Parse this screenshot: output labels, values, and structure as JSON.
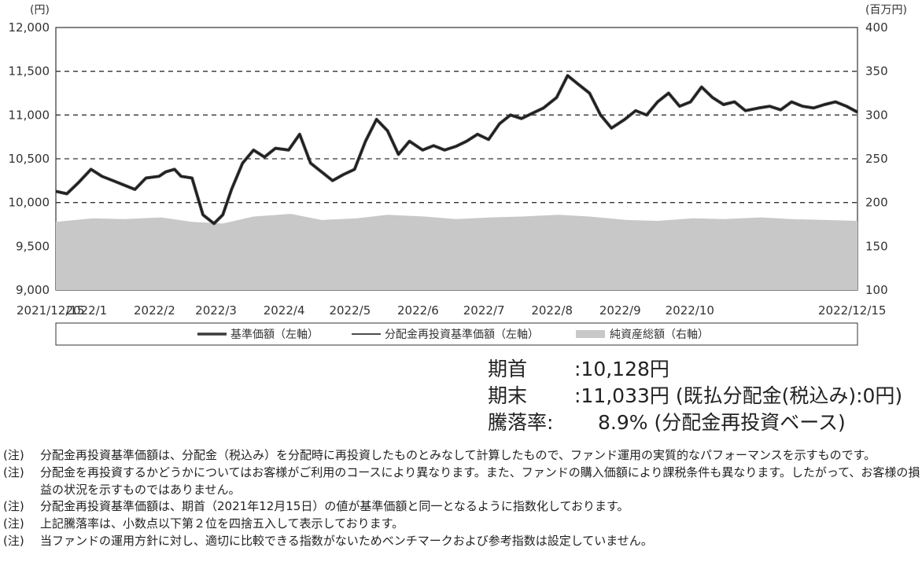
{
  "chart_data": {
    "type": "line",
    "left_axis_unit": "(円)",
    "right_axis_unit": "(百万円)",
    "ylim_left": [
      9000,
      12000
    ],
    "ylim_right": [
      100,
      400
    ],
    "yticks_left": [
      "9,000",
      "9,500",
      "10,000",
      "10,500",
      "11,000",
      "11,500",
      "12,000"
    ],
    "yticks_right": [
      "100",
      "150",
      "200",
      "250",
      "300",
      "350",
      "400"
    ],
    "xticks": [
      "2021/12/15",
      "2022/1",
      "2022/2",
      "2022/3",
      "2022/4",
      "2022/5",
      "2022/6",
      "2022/7",
      "2022/8",
      "2022/9",
      "2022/10",
      "2022/12/15"
    ],
    "grid": "dashed horizontal",
    "legend": {
      "placement": "bottom",
      "entries": [
        "基準価額（左軸）",
        "分配金再投資基準価額（左軸）",
        "純資産総額（右軸）"
      ]
    },
    "series": [
      {
        "name": "基準価額（左軸）",
        "axis": "left",
        "style": "thick line",
        "color": "#3a3a3a",
        "x": [
          "2021/12/15",
          "2021/12/20",
          "2021/12/25",
          "2021/12/31",
          "2022/1/5",
          "2022/1/10",
          "2022/1/15",
          "2022/1/20",
          "2022/1/25",
          "2022/1/31",
          "2022/2/3",
          "2022/2/7",
          "2022/2/10",
          "2022/2/15",
          "2022/2/20",
          "2022/2/25",
          "2022/3/1",
          "2022/3/5",
          "2022/3/10",
          "2022/3/15",
          "2022/3/20",
          "2022/3/25",
          "2022/3/31",
          "2022/4/5",
          "2022/4/10",
          "2022/4/15",
          "2022/4/20",
          "2022/4/25",
          "2022/4/30",
          "2022/5/5",
          "2022/5/10",
          "2022/5/15",
          "2022/5/20",
          "2022/5/25",
          "2022/5/31",
          "2022/6/5",
          "2022/6/10",
          "2022/6/15",
          "2022/6/20",
          "2022/6/25",
          "2022/6/30",
          "2022/7/5",
          "2022/7/10",
          "2022/7/15",
          "2022/7/20",
          "2022/7/25",
          "2022/7/31",
          "2022/8/5",
          "2022/8/10",
          "2022/8/15",
          "2022/8/20",
          "2022/8/25",
          "2022/8/31",
          "2022/9/5",
          "2022/9/10",
          "2022/9/15",
          "2022/9/20",
          "2022/9/25",
          "2022/9/30",
          "2022/10/5",
          "2022/10/10",
          "2022/10/15",
          "2022/10/20",
          "2022/10/25",
          "2022/10/31",
          "2022/11/5",
          "2022/11/10",
          "2022/11/15",
          "2022/11/20",
          "2022/11/25",
          "2022/11/30",
          "2022/12/5",
          "2022/12/10",
          "2022/12/15"
        ],
        "y": [
          10128,
          10100,
          10220,
          10380,
          10300,
          10250,
          10200,
          10150,
          10280,
          10300,
          10350,
          10380,
          10300,
          10280,
          9860,
          9760,
          9860,
          10150,
          10450,
          10600,
          10520,
          10620,
          10600,
          10780,
          10450,
          10350,
          10250,
          10320,
          10380,
          10700,
          10950,
          10820,
          10550,
          10700,
          10600,
          10650,
          10600,
          10640,
          10700,
          10780,
          10720,
          10900,
          11000,
          10960,
          11020,
          11080,
          11200,
          11450,
          11350,
          11250,
          11000,
          10850,
          10950,
          11050,
          11000,
          11150,
          11250,
          11100,
          11150,
          11320,
          11200,
          11120,
          11150,
          11050,
          11080,
          11100,
          11060,
          11150,
          11100,
          11080,
          11120,
          11150,
          11100,
          11033
        ]
      },
      {
        "name": "分配金再投資基準価額（左軸）",
        "axis": "left",
        "style": "thin line",
        "color": "#111111"
      },
      {
        "name": "純資産総額（右軸）",
        "axis": "right",
        "style": "area",
        "color": "#c8c8c8",
        "x": [
          "2021/12/15",
          "2022/1/1",
          "2022/1/15",
          "2022/2/1",
          "2022/2/15",
          "2022/3/1",
          "2022/3/15",
          "2022/4/1",
          "2022/4/15",
          "2022/5/1",
          "2022/5/15",
          "2022/6/1",
          "2022/6/15",
          "2022/7/1",
          "2022/7/15",
          "2022/8/1",
          "2022/8/15",
          "2022/9/1",
          "2022/9/15",
          "2022/10/1",
          "2022/10/15",
          "2022/11/1",
          "2022/11/15",
          "2022/12/1",
          "2022/12/15"
        ],
        "y": [
          178,
          182,
          181,
          183,
          178,
          176,
          184,
          187,
          180,
          182,
          186,
          184,
          181,
          183,
          184,
          186,
          184,
          180,
          179,
          182,
          181,
          183,
          181,
          180,
          179
        ]
      }
    ]
  },
  "summary": {
    "start_label": "期首",
    "start_value": ":10,128円",
    "end_label": "期末",
    "end_value": ":11,033円 (既払分配金(税込み):0円)",
    "change_label": "騰落率:",
    "change_value": "8.9% (分配金再投資ベース)"
  },
  "notes": [
    {
      "tag": "(注)",
      "text": "分配金再投資基準価額は、分配金（税込み）を分配時に再投資したものとみなして計算したもので、ファンド運用の実質的なパフォーマンスを示すものです。"
    },
    {
      "tag": "(注)",
      "text": "分配金を再投資するかどうかについてはお客様がご利用のコースにより異なります。また、ファンドの購入価額により課税条件も異なります。したがって、お客様の損益の状況を示すものではありません。"
    },
    {
      "tag": "(注)",
      "text": "分配金再投資基準価額は、期首（2021年12月15日）の値が基準価額と同一となるように指数化しております。"
    },
    {
      "tag": "(注)",
      "text": "上記騰落率は、小数点以下第２位を四捨五入して表示しております。"
    },
    {
      "tag": "(注)",
      "text": "当ファンドの運用方針に対し、適切に比較できる指数がないためベンチマークおよび参考指数は設定していません。"
    }
  ]
}
